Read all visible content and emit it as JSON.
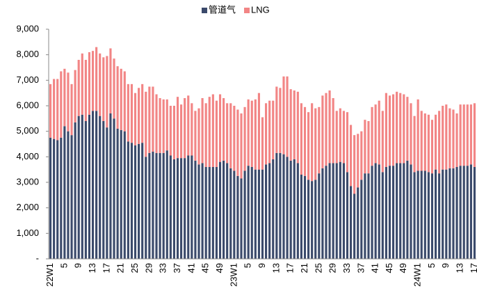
{
  "chart_data": {
    "type": "stacked_bar",
    "categories": [
      "22W1",
      null,
      null,
      null,
      "5",
      null,
      null,
      null,
      "9",
      null,
      null,
      null,
      "13",
      null,
      null,
      null,
      "17",
      null,
      null,
      null,
      "21",
      null,
      null,
      null,
      "25",
      null,
      null,
      null,
      "29",
      null,
      null,
      null,
      "33",
      null,
      null,
      null,
      "37",
      null,
      null,
      null,
      "41",
      null,
      null,
      null,
      "45",
      null,
      null,
      null,
      "49",
      null,
      null,
      null,
      "23W1",
      null,
      null,
      null,
      "5",
      null,
      null,
      null,
      "9",
      null,
      null,
      null,
      "13",
      null,
      null,
      null,
      "17",
      null,
      null,
      null,
      "21",
      null,
      null,
      null,
      "25",
      null,
      null,
      null,
      "29",
      null,
      null,
      null,
      "33",
      null,
      null,
      null,
      "37",
      null,
      null,
      null,
      "41",
      null,
      null,
      null,
      "45",
      null,
      null,
      null,
      "49",
      null,
      null,
      null,
      "24W1",
      null,
      null,
      null,
      "5",
      null,
      null,
      null,
      "9",
      null,
      null,
      null,
      "13",
      null,
      null,
      null,
      "17"
    ],
    "series": [
      {
        "name": "管道气",
        "color": "#3b4a6b",
        "values": [
          4750,
          4700,
          4650,
          4750,
          5200,
          5000,
          4850,
          5350,
          5600,
          5650,
          5400,
          5650,
          5800,
          5800,
          5600,
          5400,
          5150,
          5700,
          5500,
          5100,
          5050,
          5000,
          4600,
          4550,
          4450,
          4500,
          4550,
          4000,
          4150,
          4200,
          4150,
          4150,
          4150,
          4250,
          4050,
          3900,
          3950,
          3950,
          3950,
          4050,
          4050,
          3850,
          3700,
          3750,
          3600,
          3600,
          3600,
          3600,
          3800,
          3850,
          3750,
          3550,
          3450,
          3250,
          3150,
          3450,
          3650,
          3600,
          3500,
          3500,
          3500,
          3700,
          3750,
          3900,
          4150,
          4150,
          4100,
          4000,
          3850,
          3900,
          3750,
          3300,
          3250,
          3100,
          3050,
          3100,
          3350,
          3550,
          3650,
          3750,
          3750,
          3750,
          3800,
          3750,
          3400,
          2850,
          2550,
          2800,
          3100,
          3350,
          3350,
          3650,
          3750,
          3700,
          3400,
          3600,
          3650,
          3650,
          3750,
          3750,
          3750,
          3850,
          3700,
          3400,
          3450,
          3450,
          3450,
          3400,
          3350,
          3500,
          3350,
          3500,
          3500,
          3550,
          3550,
          3600,
          3650,
          3650,
          3650,
          3700,
          3600
        ]
      },
      {
        "name": "LNG",
        "color": "#f28585",
        "values": [
          2100,
          2350,
          2400,
          2600,
          2250,
          2300,
          2000,
          2050,
          2200,
          2400,
          2400,
          2450,
          2350,
          2500,
          2450,
          2500,
          2800,
          2550,
          2350,
          2450,
          2400,
          2350,
          2250,
          2300,
          2050,
          2200,
          2300,
          2550,
          2600,
          2550,
          2300,
          2150,
          2100,
          2000,
          1950,
          2100,
          2400,
          2100,
          2350,
          2350,
          2050,
          1950,
          2200,
          2550,
          2500,
          2750,
          2850,
          2600,
          2650,
          2450,
          2350,
          2550,
          2550,
          2600,
          2550,
          2500,
          2600,
          2600,
          2750,
          3000,
          2050,
          2400,
          2450,
          2300,
          2600,
          2550,
          3050,
          3150,
          2800,
          2700,
          2800,
          2800,
          2700,
          2650,
          3050,
          2800,
          2600,
          2850,
          2850,
          2850,
          2550,
          2050,
          2100,
          2050,
          2350,
          2400,
          2300,
          2100,
          1900,
          2100,
          2050,
          2300,
          2300,
          2500,
          2400,
          2900,
          2750,
          2800,
          2800,
          2750,
          2700,
          2500,
          2400,
          2200,
          2800,
          2350,
          2250,
          2250,
          2100,
          2150,
          2450,
          2500,
          2550,
          2350,
          2300,
          2100,
          2400,
          2400,
          2400,
          2350,
          2500
        ]
      }
    ],
    "ylim": [
      0,
      9000
    ],
    "yticks": [
      {
        "value": 0,
        "label": "-"
      },
      {
        "value": 1000,
        "label": "1,000"
      },
      {
        "value": 2000,
        "label": "2,000"
      },
      {
        "value": 3000,
        "label": "3,000"
      },
      {
        "value": 4000,
        "label": "4,000"
      },
      {
        "value": 5000,
        "label": "5,000"
      },
      {
        "value": 6000,
        "label": "6,000"
      },
      {
        "value": 7000,
        "label": "7,000"
      },
      {
        "value": 8000,
        "label": "8,000"
      },
      {
        "value": 9000,
        "label": "9,000"
      }
    ],
    "legend": "top",
    "grid": false
  }
}
